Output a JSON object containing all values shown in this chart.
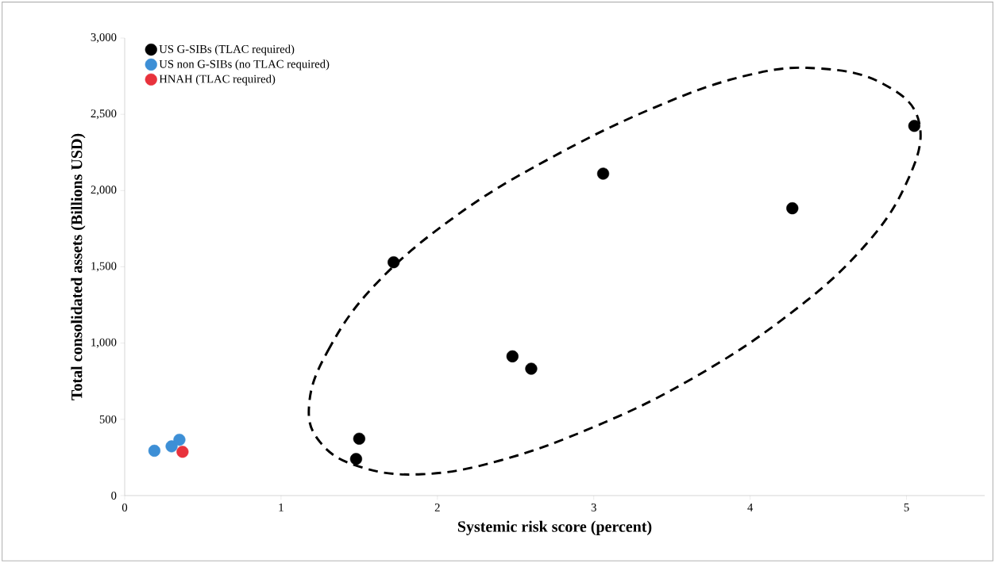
{
  "chart_data": {
    "type": "scatter",
    "xlabel": "Systemic risk score (percent)",
    "ylabel": "Total consolidated assets (Billions USD)",
    "series": [
      {
        "name": "US G-SIBs (TLAC required)",
        "color": "#000000",
        "x": [
          1.48,
          1.5,
          1.72,
          2.48,
          2.6,
          3.06,
          4.27,
          5.05
        ],
        "values": [
          240,
          373,
          1530,
          913,
          832,
          2111,
          1884,
          2424
        ]
      },
      {
        "name": "US non G-SIBs (no TLAC required)",
        "color": "#3d8fd6",
        "x": [
          0.19,
          0.3,
          0.35
        ],
        "values": [
          294,
          323,
          366
        ]
      },
      {
        "name": "HNAH (TLAC required)",
        "color": "#e8323c",
        "x": [
          0.37
        ],
        "values": [
          287
        ]
      }
    ],
    "xlim": [
      0,
      5.5
    ],
    "ylim": [
      0,
      3000
    ],
    "xticks": [
      0,
      1,
      2,
      3,
      4,
      5
    ],
    "yticks": [
      0,
      500,
      {
        "value": 1000,
        "label": "1,000"
      },
      {
        "value": 1500,
        "label": "1,500"
      },
      {
        "value": 2000,
        "label": "2,000"
      },
      {
        "value": 2500,
        "label": "2,500"
      },
      {
        "value": 3000,
        "label": "3,000"
      }
    ],
    "legend": "top left"
  }
}
